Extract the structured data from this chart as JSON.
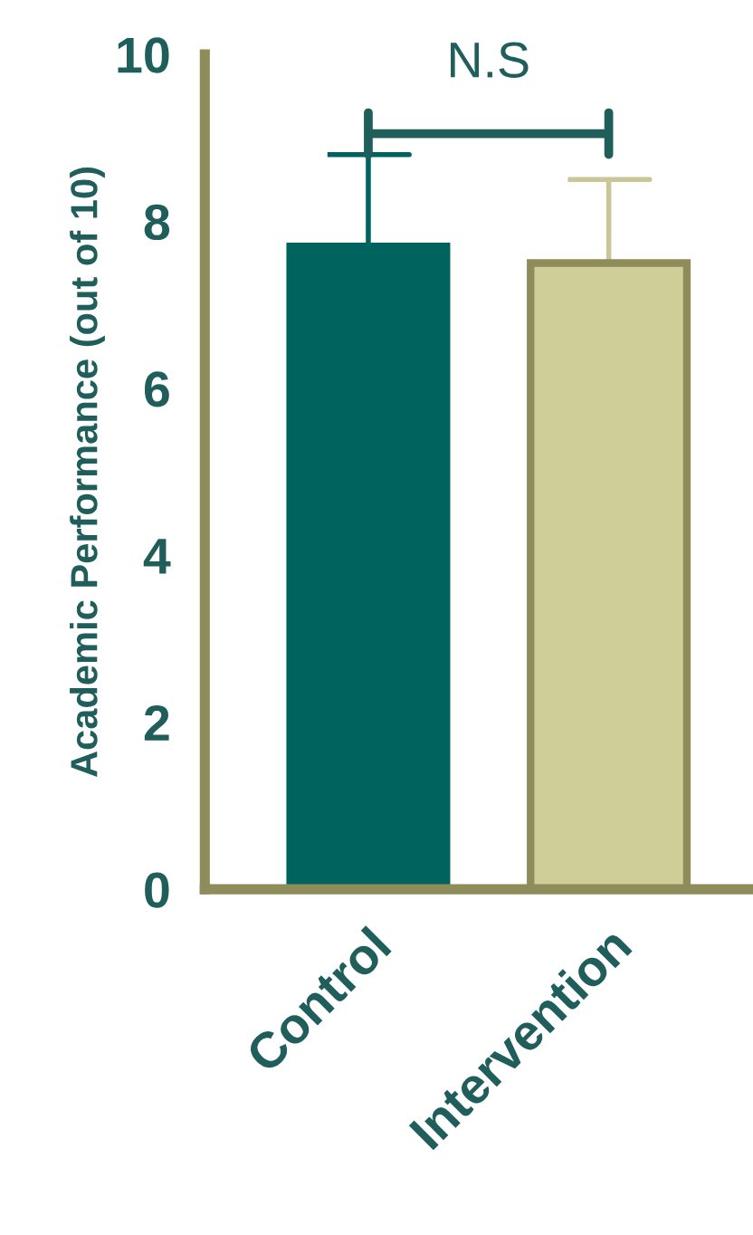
{
  "chart_data": {
    "type": "bar",
    "ylabel": "Academic Performance (out of 10)",
    "categories": [
      "Control",
      "Intervention"
    ],
    "values": [
      7.7,
      7.5
    ],
    "colors": [
      "#00635e",
      "#cfcd98"
    ],
    "errors": [
      [
        7.7,
        8.8
      ],
      [
        7.5,
        8.5
      ]
    ],
    "ylim": [
      0,
      10
    ],
    "yticks": [
      0,
      2,
      4,
      6,
      8,
      10
    ],
    "annotations": [
      "N.S"
    ]
  }
}
